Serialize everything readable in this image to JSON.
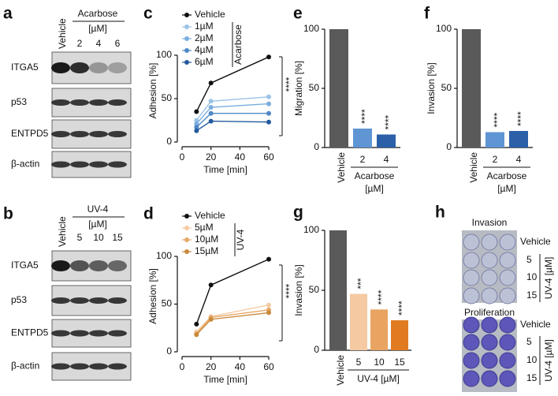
{
  "panel_letters": [
    "a",
    "b",
    "c",
    "d",
    "e",
    "f",
    "g",
    "h"
  ],
  "blots": [
    {
      "vehicle": "Vehicle",
      "treatment": "Acarbose",
      "unit": "[µM]",
      "lanes": [
        "2",
        "4",
        "6"
      ],
      "proteins": [
        "ITGA5",
        "p53",
        "ENTPD5",
        "β-actin"
      ]
    },
    {
      "vehicle": "Vehicle",
      "treatment": "UV-4",
      "unit": "[µM]",
      "lanes": [
        "5",
        "10",
        "15"
      ],
      "proteins": [
        "ITGA5",
        "p53",
        "ENTPD5",
        "β-actin"
      ]
    }
  ],
  "plates": {
    "titles": [
      "Invasion",
      "Proliferation"
    ],
    "rows": [
      "Vehicle",
      "5",
      "10",
      "15"
    ],
    "axis_label": "UV-4 [µM]"
  },
  "chart_data": [
    {
      "type": "line",
      "xlabel": "Time [min]",
      "ylabel": "Adhesion [%]",
      "x": [
        10,
        20,
        60
      ],
      "xlim": [
        0,
        60
      ],
      "xticks": [
        0,
        20,
        40,
        60
      ],
      "ylim": [
        0,
        100
      ],
      "yticks": [
        0,
        50,
        100
      ],
      "legend_group": "Acarbose",
      "annotation": "****",
      "series": [
        {
          "name": "Vehicle",
          "color": "#111111",
          "values": [
            35,
            68,
            98
          ]
        },
        {
          "name": "1µM",
          "color": "#9cc3e6",
          "values": [
            25,
            47,
            52
          ]
        },
        {
          "name": "2µM",
          "color": "#7aaede",
          "values": [
            21,
            40,
            44
          ]
        },
        {
          "name": "4µM",
          "color": "#4f88c8",
          "values": [
            17,
            33,
            33
          ]
        },
        {
          "name": "6µM",
          "color": "#245a9e",
          "values": [
            13,
            24,
            23
          ]
        }
      ]
    },
    {
      "type": "line",
      "xlabel": "Time [min]",
      "ylabel": "Adhesion [%]",
      "x": [
        10,
        20,
        60
      ],
      "xlim": [
        0,
        60
      ],
      "xticks": [
        0,
        20,
        40,
        60
      ],
      "ylim": [
        0,
        100
      ],
      "yticks": [
        0,
        50,
        100
      ],
      "legend_group": "UV-4",
      "annotation": "****",
      "series": [
        {
          "name": "Vehicle",
          "color": "#111111",
          "values": [
            29,
            70,
            97
          ]
        },
        {
          "name": "5µM",
          "color": "#f4cca4",
          "values": [
            21,
            37,
            49
          ]
        },
        {
          "name": "10µM",
          "color": "#e6a868",
          "values": [
            19,
            36,
            44
          ]
        },
        {
          "name": "15µM",
          "color": "#c88a3c",
          "values": [
            18,
            34,
            41
          ]
        }
      ]
    },
    {
      "type": "bar",
      "ylabel": "Migration [%]",
      "categories": [
        "Vehicle",
        "2",
        "4"
      ],
      "values": [
        100,
        16,
        11
      ],
      "colors": [
        "#5a5a5a",
        "#5f95d3",
        "#2b5fa8"
      ],
      "ylim": [
        0,
        100
      ],
      "yticks": [
        0,
        50,
        100
      ],
      "significance": [
        null,
        "****",
        "****"
      ],
      "xlabel_lines": [
        "Acarbose",
        "[µM]"
      ]
    },
    {
      "type": "bar",
      "ylabel": "Invasion [%]",
      "categories": [
        "Vehicle",
        "2",
        "4"
      ],
      "values": [
        100,
        13,
        14
      ],
      "colors": [
        "#5a5a5a",
        "#5f95d3",
        "#2b5fa8"
      ],
      "ylim": [
        0,
        100
      ],
      "yticks": [
        0,
        50,
        100
      ],
      "significance": [
        null,
        "****",
        "****"
      ],
      "xlabel_lines": [
        "Acarbose",
        "[µM]"
      ]
    },
    {
      "type": "bar",
      "ylabel": "Invasion [%]",
      "categories": [
        "Vehicle",
        "5",
        "10",
        "15"
      ],
      "values": [
        100,
        47,
        34,
        25
      ],
      "colors": [
        "#5a5a5a",
        "#f5c9a1",
        "#e9a462",
        "#e07b22"
      ],
      "ylim": [
        0,
        100
      ],
      "yticks": [
        0,
        50,
        100
      ],
      "significance": [
        null,
        "***",
        "****",
        "****"
      ],
      "xlabel_lines": [
        "UV-4 [µM]"
      ]
    }
  ]
}
